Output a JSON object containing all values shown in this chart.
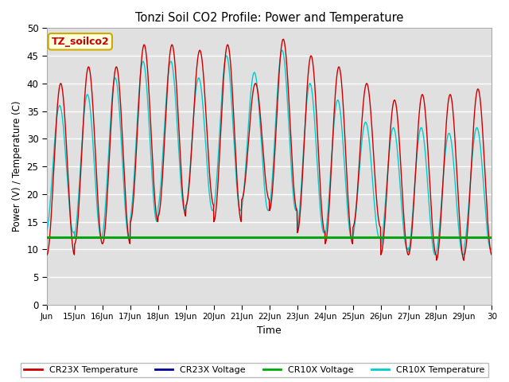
{
  "title": "Tonzi Soil CO2 Profile: Power and Temperature",
  "xlabel": "Time",
  "ylabel": "Power (V) / Temperature (C)",
  "ylim": [
    0,
    50
  ],
  "yticks": [
    0,
    5,
    10,
    15,
    20,
    25,
    30,
    35,
    40,
    45,
    50
  ],
  "xlim_start": 14,
  "xlim_end": 30,
  "xtick_positions": [
    14,
    15,
    16,
    17,
    18,
    19,
    20,
    21,
    22,
    23,
    24,
    25,
    26,
    27,
    28,
    29,
    30
  ],
  "xtick_labels": [
    "Jun",
    "15Jun",
    "16Jun",
    "17Jun",
    "18Jun",
    "19Jun",
    "20Jun",
    "21Jun",
    "22Jun",
    "23Jun",
    "24Jun",
    "25Jun",
    "26Jun",
    "27Jun",
    "28Jun",
    "29Jun",
    "30"
  ],
  "bg_color": "#e0e0e0",
  "fig_color": "#ffffff",
  "cr23x_temp_color": "#cc0000",
  "cr23x_volt_color": "#000099",
  "cr10x_volt_color": "#00aa00",
  "cr10x_temp_color": "#00cccc",
  "voltage_level_cr23x": 12.0,
  "voltage_level_cr10x": 12.15,
  "annotation_text": "TZ_soilco2",
  "cr23x_mins": [
    9,
    11,
    11,
    15,
    16,
    18,
    15,
    19,
    17,
    13,
    11,
    14,
    9,
    9,
    8,
    9
  ],
  "cr23x_maxs": [
    40,
    43,
    43,
    47,
    47,
    46,
    47,
    40,
    48,
    45,
    43,
    40,
    37,
    38,
    38,
    39
  ],
  "cr10x_mins": [
    13,
    12,
    12,
    15,
    17,
    17,
    17,
    17,
    17,
    13,
    12,
    12,
    10,
    9,
    9,
    10
  ],
  "cr10x_maxs": [
    36,
    38,
    41,
    44,
    44,
    41,
    45,
    42,
    46,
    40,
    37,
    33,
    32,
    32,
    31,
    32
  ],
  "days": 16,
  "start_day": 14,
  "points_per_day": 96,
  "cr23x_phase": -0.25,
  "cr10x_phase": -0.21,
  "grid_color": "#ffffff",
  "legend_entries": [
    "CR23X Temperature",
    "CR23X Voltage",
    "CR10X Voltage",
    "CR10X Temperature"
  ]
}
